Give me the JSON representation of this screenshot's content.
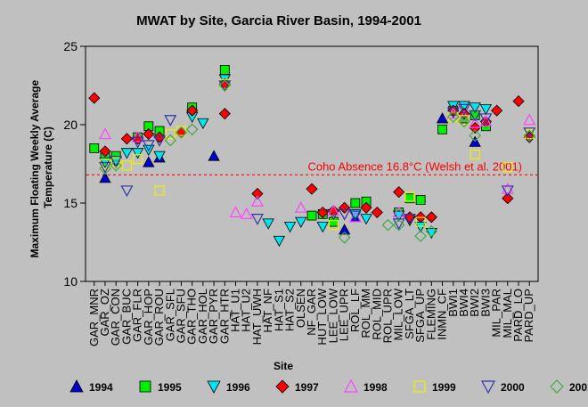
{
  "chart_data": {
    "type": "scatter",
    "title": "MWAT by Site, Garcia River Basin, 1994-2001",
    "ylabel": "Maximum Floating Weekly Average Temperature (C)",
    "xlabel": "Site",
    "ylim": [
      10,
      25
    ],
    "yticks": [
      10,
      15,
      20,
      25
    ],
    "grid": false,
    "legend_position": "bottom",
    "reference_line": {
      "y": 16.8,
      "label": "Coho Absence 16.8°C (Welsh et al. 2001)",
      "color": "#ff0000"
    },
    "categories": [
      "GAR_MNR",
      "GAR_OZ",
      "GAR_CON",
      "GAR_BUC",
      "GAR_FLR",
      "GAR_HOP",
      "GAR_ROU",
      "GAR_SFL",
      "GAR_SFU",
      "GAR_THO",
      "GAR_HOL",
      "GAR_PYR",
      "GAR_HTR",
      "HAT_U1",
      "HAT_U2",
      "HAT_UWH",
      "HAT_NF",
      "HAT_S1",
      "HAT_S2",
      "OLSEN",
      "NF_GAR",
      "HUT_LOW",
      "LEE_LOW",
      "LEE_UPR",
      "ROL_LF",
      "ROL_MM",
      "ROL_MID",
      "ROL_UPR",
      "MIL_LOW",
      "SFGA_LT",
      "SFGA_UP",
      "FLEMING",
      "INMN_CF",
      "BWI1",
      "BWI4",
      "BWI2",
      "BWI3",
      "MIL_PAR",
      "MIL_MAL",
      "PARD_LO",
      "PARD_UP"
    ],
    "series": [
      {
        "name": "1994",
        "marker": "triangle-up",
        "color": "#0000cc",
        "filled": true,
        "points": [
          [
            "GAR_OZ",
            16.6
          ],
          [
            "GAR_HOP",
            17.6
          ],
          [
            "GAR_ROU",
            17.9
          ],
          [
            "GAR_PYR",
            18.0
          ],
          [
            "LEE_UPR",
            13.3
          ],
          [
            "ROL_LF",
            14.1
          ],
          [
            "INMN_CF",
            20.4
          ],
          [
            "BWI2",
            18.9
          ]
        ]
      },
      {
        "name": "1995",
        "marker": "square",
        "color": "#00ee00",
        "filled": true,
        "points": [
          [
            "GAR_MNR",
            18.5
          ],
          [
            "GAR_OZ",
            17.9
          ],
          [
            "GAR_CON",
            18.0
          ],
          [
            "GAR_FLR",
            19.2
          ],
          [
            "GAR_HOP",
            19.9
          ],
          [
            "GAR_ROU",
            19.6
          ],
          [
            "GAR_THO",
            21.1
          ],
          [
            "GAR_HTR",
            23.5
          ],
          [
            "NF_GAR",
            14.2
          ],
          [
            "HUT_LOW",
            14.3
          ],
          [
            "LEE_LOW",
            13.8
          ],
          [
            "ROL_LF",
            15.0
          ],
          [
            "ROL_MM",
            15.1
          ],
          [
            "MIL_LOW",
            14.4
          ],
          [
            "SFGA_LT",
            15.3
          ],
          [
            "SFGA_UP",
            15.2
          ],
          [
            "INMN_CF",
            19.7
          ],
          [
            "BWI1",
            20.9
          ],
          [
            "BWI4",
            20.4
          ],
          [
            "BWI2",
            20.6
          ],
          [
            "BWI3",
            19.9
          ]
        ]
      },
      {
        "name": "1996",
        "marker": "triangle-down",
        "color": "#00e5ee",
        "filled": true,
        "points": [
          [
            "GAR_OZ",
            17.6
          ],
          [
            "GAR_CON",
            17.6
          ],
          [
            "GAR_BUC",
            18.2
          ],
          [
            "GAR_FLR",
            18.2
          ],
          [
            "GAR_HOP",
            18.4
          ],
          [
            "GAR_ROU",
            18.0
          ],
          [
            "GAR_THO",
            20.5
          ],
          [
            "GAR_HOL",
            20.1
          ],
          [
            "GAR_HTR",
            22.9
          ],
          [
            "HAT_NF",
            13.7
          ],
          [
            "HAT_S1",
            12.6
          ],
          [
            "HAT_S2",
            13.5
          ],
          [
            "OLSEN",
            13.8
          ],
          [
            "HUT_LOW",
            13.5
          ],
          [
            "LEE_LOW",
            14.3
          ],
          [
            "ROL_LF",
            14.3
          ],
          [
            "ROL_MM",
            14.0
          ],
          [
            "MIL_LOW",
            14.2
          ],
          [
            "SFGA_LT",
            13.9
          ],
          [
            "SFGA_UP",
            13.5
          ],
          [
            "FLEMING",
            13.1
          ],
          [
            "BWI1",
            21.2
          ],
          [
            "BWI4",
            21.2
          ],
          [
            "BWI2",
            21.1
          ],
          [
            "BWI3",
            21.0
          ]
        ]
      },
      {
        "name": "1997",
        "marker": "diamond",
        "color": "#ff0000",
        "filled": true,
        "points": [
          [
            "GAR_MNR",
            21.7
          ],
          [
            "GAR_OZ",
            18.3
          ],
          [
            "GAR_BUC",
            19.1
          ],
          [
            "GAR_FLR",
            19.1
          ],
          [
            "GAR_HOP",
            19.4
          ],
          [
            "GAR_ROU",
            19.2
          ],
          [
            "GAR_SFU",
            19.5
          ],
          [
            "GAR_THO",
            20.9
          ],
          [
            "GAR_HTR",
            20.7
          ],
          [
            "GAR_HTR",
            22.6
          ],
          [
            "HAT_UWH",
            15.6
          ],
          [
            "NF_GAR",
            15.9
          ],
          [
            "HUT_LOW",
            14.4
          ],
          [
            "LEE_LOW",
            14.5
          ],
          [
            "LEE_UPR",
            14.7
          ],
          [
            "ROL_MM",
            14.7
          ],
          [
            "ROL_MID",
            14.4
          ],
          [
            "MIL_LOW",
            15.7
          ],
          [
            "SFGA_LT",
            14.1
          ],
          [
            "SFGA_UP",
            14.1
          ],
          [
            "FLEMING",
            14.1
          ],
          [
            "BWI1",
            20.9
          ],
          [
            "BWI4",
            20.7
          ],
          [
            "BWI2",
            19.8
          ],
          [
            "BWI3",
            20.2
          ],
          [
            "MIL_PAR",
            20.9
          ],
          [
            "MIL_MAL",
            15.3
          ],
          [
            "PARD_LO",
            21.5
          ],
          [
            "PARD_UP",
            19.2
          ]
        ]
      },
      {
        "name": "1998",
        "marker": "triangle-up",
        "color": "#ff44ff",
        "filled": false,
        "points": [
          [
            "GAR_OZ",
            19.4
          ],
          [
            "GAR_FLR",
            19.2
          ],
          [
            "HAT_U1",
            14.4
          ],
          [
            "HAT_U2",
            14.3
          ],
          [
            "HAT_UWH",
            15.1
          ],
          [
            "OLSEN",
            14.7
          ],
          [
            "LEE_LOW",
            14.5
          ],
          [
            "ROL_LF",
            14.1
          ],
          [
            "MIL_LOW",
            14.4
          ],
          [
            "BWI1",
            20.7
          ],
          [
            "BWI4",
            20.5
          ],
          [
            "BWI2",
            20.1
          ],
          [
            "BWI3",
            20.2
          ],
          [
            "MIL_MAL",
            15.9
          ],
          [
            "PARD_UP",
            20.3
          ]
        ]
      },
      {
        "name": "1999",
        "marker": "square",
        "color": "#eeee00",
        "filled": false,
        "points": [
          [
            "GAR_OZ",
            17.5
          ],
          [
            "GAR_CON",
            17.6
          ],
          [
            "GAR_BUC",
            17.4
          ],
          [
            "GAR_FLR",
            17.8
          ],
          [
            "GAR_ROU",
            15.8
          ],
          [
            "GAR_SFL",
            19.4
          ],
          [
            "GAR_SFU",
            19.6
          ],
          [
            "GAR_HTR",
            22.6
          ],
          [
            "LEE_LOW",
            13.6
          ],
          [
            "SFGA_LT",
            15.4
          ],
          [
            "SFGA_UP",
            13.8
          ],
          [
            "BWI1",
            20.5
          ],
          [
            "BWI4",
            20.3
          ],
          [
            "BWI2",
            18.1
          ],
          [
            "MIL_MAL",
            17.3
          ],
          [
            "PARD_UP",
            19.4
          ]
        ]
      },
      {
        "name": "2000",
        "marker": "triangle-down",
        "color": "#3333aa",
        "filled": false,
        "points": [
          [
            "GAR_OZ",
            17.3
          ],
          [
            "GAR_CON",
            17.7
          ],
          [
            "GAR_BUC",
            15.8
          ],
          [
            "GAR_FLR",
            18.9
          ],
          [
            "GAR_HOP",
            18.7
          ],
          [
            "GAR_ROU",
            19.0
          ],
          [
            "GAR_SFL",
            20.3
          ],
          [
            "GAR_HTR",
            22.5
          ],
          [
            "HAT_UWH",
            14.0
          ],
          [
            "LEE_UPR",
            14.3
          ],
          [
            "ROL_LF",
            14.2
          ],
          [
            "MIL_LOW",
            13.7
          ],
          [
            "SFGA_LT",
            14.0
          ],
          [
            "BWI1",
            20.8
          ],
          [
            "BWI4",
            21.0
          ],
          [
            "BWI2",
            20.6
          ],
          [
            "BWI3",
            20.4
          ],
          [
            "MIL_MAL",
            15.8
          ],
          [
            "PARD_UP",
            19.5
          ]
        ]
      },
      {
        "name": "2001",
        "marker": "diamond",
        "color": "#44aa44",
        "filled": false,
        "points": [
          [
            "GAR_OZ",
            17.2
          ],
          [
            "GAR_CON",
            17.4
          ],
          [
            "GAR_SFL",
            19.0
          ],
          [
            "GAR_SFU",
            19.5
          ],
          [
            "GAR_THO",
            19.7
          ],
          [
            "GAR_HTR",
            22.5
          ],
          [
            "LEE_UPR",
            12.8
          ],
          [
            "MIL_LOW",
            13.6
          ],
          [
            "ROL_UPR",
            13.6
          ],
          [
            "SFGA_UP",
            12.9
          ],
          [
            "FLEMING",
            13.2
          ],
          [
            "BWI1",
            20.5
          ],
          [
            "BWI4",
            20.2
          ],
          [
            "BWI2",
            19.3
          ],
          [
            "PARD_UP",
            19.3
          ]
        ]
      }
    ]
  }
}
